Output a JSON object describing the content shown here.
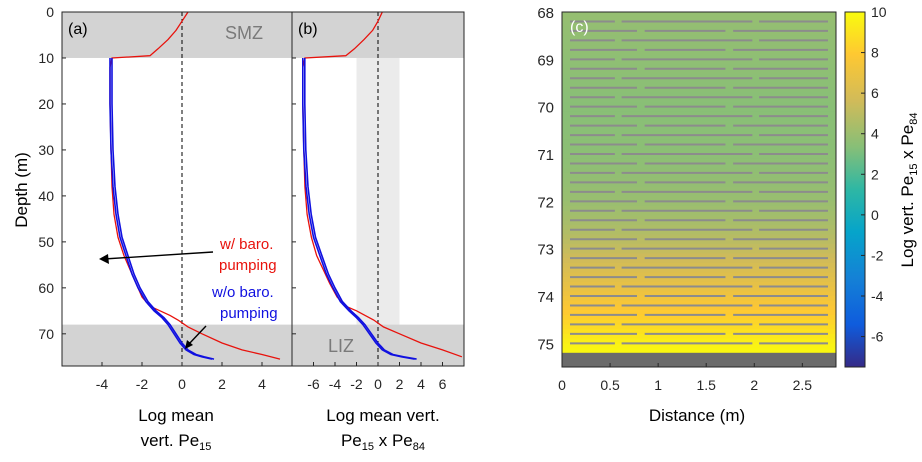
{
  "chart_data": [
    {
      "panel": "(a)",
      "type": "line",
      "ylabel": "Depth (m)",
      "xlabel_line1": "Log mean",
      "xlabel_line2": "vert. Pe",
      "xlabel_sub": "15",
      "xlim": [
        -6,
        5.5
      ],
      "ylim": [
        0,
        77
      ],
      "xticks": [
        -4,
        -2,
        0,
        2,
        4
      ],
      "yticks": [
        0,
        10,
        20,
        30,
        40,
        50,
        60,
        70
      ],
      "zones": [
        {
          "label": "SMZ",
          "from": 0,
          "to": 10
        },
        {
          "label": "LIZ",
          "from": 68,
          "to": 77
        }
      ],
      "reference_x": 0,
      "annotations": [
        {
          "lines": [
            "w/ baro.",
            "pumping"
          ],
          "color": "#e8120c",
          "target": [
            -3.0,
            54
          ]
        },
        {
          "lines": [
            "w/o baro.",
            "pumping"
          ],
          "color": "#1010e0",
          "target": [
            0.3,
            73.5
          ]
        }
      ],
      "series": [
        {
          "key": "with_baro",
          "color": "#e8120c",
          "x": [
            0.3,
            0.0,
            -0.3,
            -0.7,
            -1.2,
            -1.6,
            -3.5,
            -3.6,
            -3.6,
            -3.55,
            -3.5,
            -3.4,
            -3.2,
            -2.9,
            -2.6,
            -2.3,
            -2.0,
            -1.6,
            -1.1,
            -0.6,
            -0.2,
            0.3,
            1.0,
            2.0,
            3.0,
            4.0,
            4.9
          ],
          "y": [
            0,
            2,
            4,
            6,
            8,
            9.5,
            10,
            12,
            20,
            30,
            38,
            44,
            49,
            53,
            56,
            59,
            62,
            64,
            65,
            66,
            67,
            68.5,
            70,
            72,
            73.5,
            74.5,
            75.5
          ]
        },
        {
          "key": "without_baro",
          "color": "#1010e0",
          "x": [
            -3.6,
            -3.6,
            -3.55,
            -3.45,
            -3.3,
            -3.1,
            -2.8,
            -2.5,
            -2.2,
            -1.8,
            -1.4,
            -1.0,
            -0.7,
            -0.4,
            -0.1,
            0.2,
            0.6,
            1.0,
            1.5
          ],
          "y": [
            10,
            20,
            30,
            38,
            44,
            49,
            53,
            57,
            60,
            63,
            65,
            66.5,
            68,
            70,
            72,
            73.5,
            74.5,
            75,
            75.5
          ]
        }
      ]
    },
    {
      "panel": "(b)",
      "type": "line",
      "xlabel_line1": "Log mean vert.",
      "xlabel_line2a": "Pe",
      "xlabel_sub_a": "15",
      "xlabel_mid": " x Pe",
      "xlabel_sub_b": "84",
      "xlim": [
        -8,
        8
      ],
      "ylim": [
        0,
        77
      ],
      "xticks": [
        -6,
        -4,
        -2,
        0,
        2,
        4,
        6
      ],
      "band": [
        -2,
        2
      ],
      "zones": [
        {
          "from": 0,
          "to": 10
        },
        {
          "label": "LIZ",
          "from": 68,
          "to": 77
        }
      ],
      "reference_x": 0,
      "series": [
        {
          "key": "with_baro",
          "color": "#e8120c",
          "x": [
            0.4,
            0.0,
            -0.5,
            -1.3,
            -2.2,
            -3.0,
            -6.8,
            -7.0,
            -7.0,
            -6.9,
            -6.8,
            -6.6,
            -6.2,
            -5.7,
            -5.1,
            -4.5,
            -3.8,
            -3.0,
            -2.0,
            -1.2,
            -0.4,
            0.5,
            2.0,
            4.0,
            6.0,
            7.8
          ],
          "y": [
            0,
            2,
            4,
            6,
            8,
            9.5,
            10,
            12,
            20,
            30,
            38,
            44,
            49,
            53,
            56,
            59,
            62,
            64,
            65,
            66,
            67,
            68.5,
            70,
            72,
            73.5,
            75
          ]
        },
        {
          "key": "without_baro",
          "color": "#1010e0",
          "x": [
            -7.0,
            -7.0,
            -6.9,
            -6.7,
            -6.4,
            -6.0,
            -5.4,
            -4.8,
            -4.2,
            -3.5,
            -2.7,
            -2.0,
            -1.4,
            -0.8,
            -0.2,
            0.4,
            1.2,
            2.2,
            3.4
          ],
          "y": [
            10,
            20,
            30,
            38,
            44,
            49,
            53,
            57,
            60,
            63,
            65,
            66.5,
            68,
            70,
            72,
            73.5,
            74.5,
            75,
            75.5
          ]
        }
      ]
    },
    {
      "panel": "(c)",
      "type": "heatmap",
      "xlabel": "Distance (m)",
      "xlim": [
        0,
        2.85
      ],
      "ylim": [
        68,
        75.5
      ],
      "xticks": [
        0,
        0.5,
        1,
        1.5,
        2,
        2.5
      ],
      "yticks": [
        68,
        69,
        70,
        71,
        72,
        73,
        74,
        75
      ],
      "colorbar_label_pre": "Log vert. Pe",
      "colorbar_sub_a": "15",
      "colorbar_mid": " x Pe",
      "colorbar_sub_b": "84",
      "colorbar_range": [
        -7.5,
        10
      ],
      "colorbar_ticks": [
        10,
        8,
        6,
        4,
        2,
        0,
        -2,
        -4,
        -6
      ],
      "depth_profile": {
        "depth": [
          68,
          69,
          70,
          71,
          72,
          72.5,
          73,
          73.5,
          74,
          74.5,
          75,
          75.3
        ],
        "value": [
          3.8,
          3.6,
          3.4,
          3.5,
          3.9,
          4.4,
          5.2,
          6.2,
          7.2,
          8.3,
          9.6,
          10
        ]
      },
      "bottom_band_depth": [
        75.2,
        75.5
      ],
      "layers_m": 0.2
    }
  ]
}
